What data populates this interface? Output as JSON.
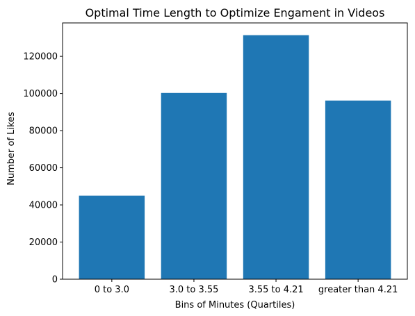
{
  "chart_data": {
    "type": "bar",
    "title": "Optimal Time Length to Optimize Engament in Videos",
    "xlabel": "Bins of Minutes (Quartiles)",
    "ylabel": "Number of Likes",
    "categories": [
      "0 to 3.0",
      "3.0 to 3.55",
      "3.55 to 4.21",
      "greater than 4.21"
    ],
    "values": [
      45000,
      100300,
      131400,
      96200
    ],
    "ylim": [
      0,
      138000
    ],
    "yticks": [
      0,
      20000,
      40000,
      60000,
      80000,
      100000,
      120000
    ],
    "grid": false,
    "bar_color": "#1f77b4"
  }
}
